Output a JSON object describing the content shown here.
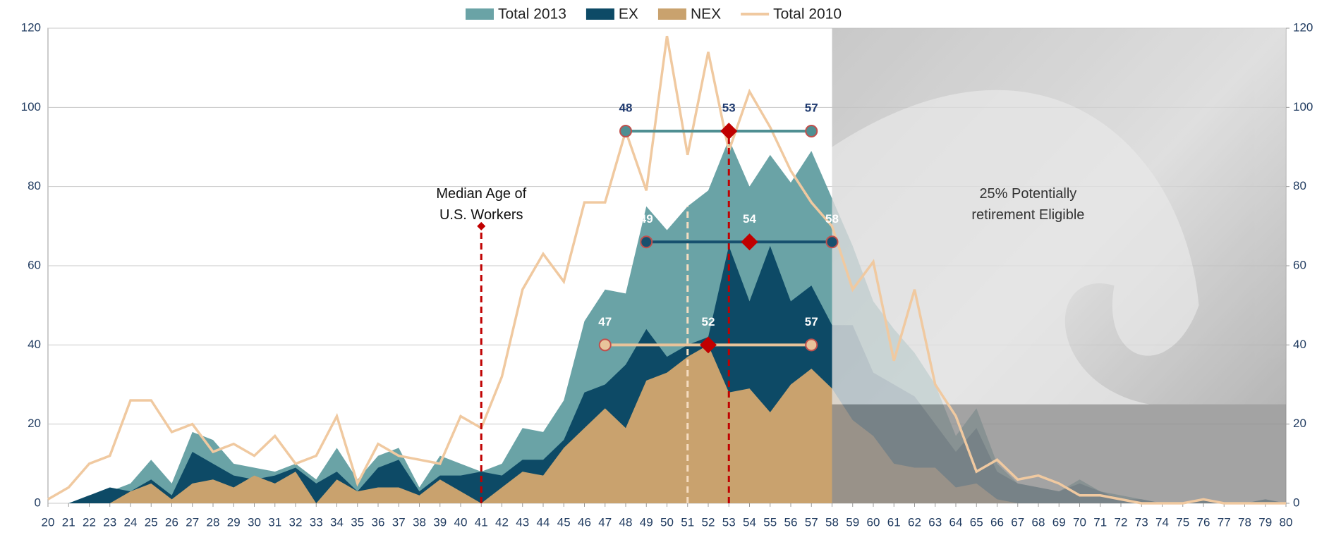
{
  "chart_data": {
    "type": "area",
    "x": [
      20,
      21,
      22,
      23,
      24,
      25,
      26,
      27,
      28,
      29,
      30,
      31,
      32,
      33,
      34,
      35,
      36,
      37,
      38,
      39,
      40,
      41,
      42,
      43,
      44,
      45,
      46,
      47,
      48,
      49,
      50,
      51,
      52,
      53,
      54,
      55,
      56,
      57,
      58,
      59,
      60,
      61,
      62,
      63,
      64,
      65,
      66,
      67,
      68,
      69,
      70,
      71,
      72,
      73,
      74,
      75,
      76,
      77,
      78,
      79,
      80
    ],
    "xlim": [
      20,
      80
    ],
    "xticks": [
      20,
      21,
      22,
      23,
      24,
      25,
      26,
      27,
      28,
      29,
      30,
      31,
      32,
      33,
      34,
      35,
      36,
      37,
      38,
      39,
      40,
      41,
      42,
      43,
      44,
      45,
      46,
      47,
      48,
      49,
      50,
      51,
      52,
      53,
      54,
      55,
      56,
      57,
      58,
      59,
      60,
      61,
      62,
      63,
      64,
      65,
      66,
      67,
      68,
      69,
      70,
      71,
      72,
      73,
      74,
      75,
      76,
      77,
      78,
      79,
      80
    ],
    "ylim": [
      0,
      120
    ],
    "yticks": [
      0,
      20,
      40,
      60,
      80,
      100,
      120
    ],
    "y2lim": [
      0,
      120
    ],
    "y2ticks": [
      0,
      20,
      40,
      60,
      80,
      100,
      120
    ],
    "grid": true,
    "legend": "top",
    "series": [
      {
        "name": "Total 2013",
        "color": "#6aa3a6",
        "kind": "area",
        "values": [
          0,
          0,
          2,
          3,
          5,
          11,
          5,
          18,
          16,
          10,
          9,
          8,
          10,
          6,
          14,
          6,
          12,
          14,
          4,
          12,
          10,
          8,
          10,
          19,
          18,
          26,
          46,
          54,
          53,
          75,
          69,
          75,
          79,
          92,
          80,
          88,
          81,
          89,
          77,
          65,
          51,
          44,
          38,
          30,
          17,
          24,
          10,
          5,
          4,
          3,
          6,
          3,
          2,
          1,
          0,
          0,
          1,
          0,
          0,
          1,
          0
        ]
      },
      {
        "name": "EX",
        "color": "#0d4a66",
        "kind": "area",
        "values": [
          0,
          0,
          2,
          4,
          3,
          6,
          2,
          13,
          10,
          7,
          6,
          7,
          9,
          5,
          8,
          3,
          9,
          11,
          3,
          7,
          7,
          8,
          7,
          11,
          11,
          16,
          28,
          30,
          35,
          44,
          37,
          40,
          42,
          65,
          51,
          65,
          51,
          55,
          45,
          45,
          33,
          30,
          27,
          20,
          13,
          19,
          8,
          5,
          4,
          3,
          5,
          3,
          1,
          1,
          0,
          0,
          1,
          0,
          0,
          1,
          0
        ]
      },
      {
        "name": "NEX",
        "color": "#c9a26e",
        "kind": "area",
        "values": [
          0,
          0,
          0,
          0,
          3,
          5,
          1,
          5,
          6,
          4,
          7,
          5,
          8,
          0,
          6,
          3,
          4,
          4,
          2,
          6,
          3,
          0,
          4,
          8,
          7,
          14,
          19,
          24,
          19,
          31,
          33,
          37,
          40,
          28,
          29,
          23,
          30,
          34,
          29,
          21,
          17,
          10,
          9,
          9,
          4,
          5,
          1,
          0,
          0,
          0,
          0,
          0,
          0,
          0,
          0,
          0,
          0,
          0,
          0,
          0,
          0
        ]
      },
      {
        "name": "Total 2010",
        "color": "#f0c9a0",
        "kind": "line",
        "values": [
          1,
          4,
          10,
          12,
          26,
          26,
          18,
          20,
          13,
          15,
          12,
          17,
          10,
          12,
          22,
          5,
          15,
          12,
          11,
          10,
          22,
          19,
          32,
          54,
          63,
          56,
          76,
          76,
          94,
          79,
          118,
          88,
          114,
          89,
          104,
          95,
          84,
          76,
          70,
          54,
          61,
          36,
          54,
          30,
          22,
          8,
          11,
          6,
          7,
          5,
          2,
          2,
          1,
          0,
          0,
          0,
          1,
          0,
          0,
          0,
          0
        ]
      }
    ],
    "ranges": [
      {
        "y": 94,
        "start": 48,
        "median": 53,
        "end": 57,
        "color": "#4f8f92",
        "label_color": "#1f3a6f"
      },
      {
        "y": 66,
        "start": 49,
        "median": 54,
        "end": 58,
        "color": "#17506e",
        "label_color": "#ffffff"
      },
      {
        "y": 40,
        "start": 47,
        "median": 52,
        "end": 57,
        "color": "#e8c39a",
        "label_color": "#ffffff"
      }
    ],
    "vlines": [
      {
        "x": 41,
        "top": 70,
        "color": "#c00000"
      },
      {
        "x": 53,
        "top": 94,
        "color": "#c00000"
      },
      {
        "x": 51,
        "top": 75,
        "color": "#f5dcc0"
      }
    ],
    "shaded_region": [
      58,
      80
    ],
    "annotations": [
      {
        "x": 41,
        "y": 78,
        "lines": [
          "Median Age of",
          "U.S. Workers"
        ]
      },
      {
        "x": 67.5,
        "y": 78,
        "lines": [
          "25% Potentially",
          "retirement Eligible"
        ]
      }
    ]
  }
}
